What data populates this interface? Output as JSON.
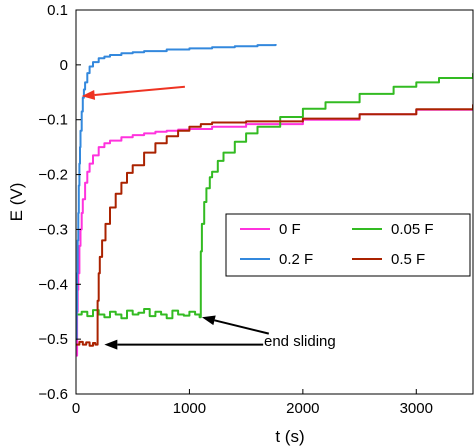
{
  "chart_data": {
    "type": "line",
    "xlabel": "t (s)",
    "ylabel": "E (V)",
    "xlim": [
      0,
      3500
    ],
    "ylim": [
      -0.6,
      0.1
    ],
    "x_ticks": [
      0,
      1000,
      2000,
      3000
    ],
    "x_tick_labels": [
      "0",
      "1000",
      "2000",
      "3000"
    ],
    "y_ticks": [
      0.1,
      0,
      -0.1,
      -0.2,
      -0.3,
      -0.4,
      -0.5,
      -0.6
    ],
    "y_tick_labels": [
      "0.1",
      "0",
      "−0.1",
      "−0.2",
      "−0.3",
      "−0.4",
      "−0.5",
      "−0.6"
    ],
    "grid": false,
    "legend_position": "middle-right",
    "series": [
      {
        "name": "0 F",
        "color": "#ff33dd",
        "x": [
          0,
          5,
          10,
          15,
          20,
          30,
          40,
          50,
          60,
          80,
          100,
          120,
          150,
          200,
          250,
          300,
          400,
          500,
          600,
          700,
          800,
          900,
          1000,
          1200,
          1500,
          2000,
          2500,
          3000,
          3500
        ],
        "y": [
          -0.5,
          -0.53,
          -0.45,
          -0.41,
          -0.38,
          -0.33,
          -0.3,
          -0.27,
          -0.245,
          -0.215,
          -0.195,
          -0.18,
          -0.165,
          -0.15,
          -0.143,
          -0.138,
          -0.132,
          -0.128,
          -0.125,
          -0.122,
          -0.12,
          -0.118,
          -0.117,
          -0.113,
          -0.108,
          -0.1,
          -0.09,
          -0.082,
          -0.074
        ]
      },
      {
        "name": "0.05 F",
        "color": "#33bb22",
        "x": [
          0,
          50,
          100,
          150,
          200,
          250,
          300,
          350,
          400,
          450,
          500,
          550,
          600,
          650,
          700,
          750,
          800,
          850,
          900,
          950,
          1000,
          1050,
          1090,
          1100,
          1110,
          1130,
          1150,
          1180,
          1200,
          1250,
          1300,
          1400,
          1500,
          1600,
          1800,
          2000,
          2200,
          2500,
          2800,
          3000,
          3200,
          3500
        ],
        "y": [
          -0.455,
          -0.45,
          -0.458,
          -0.447,
          -0.455,
          -0.46,
          -0.45,
          -0.455,
          -0.462,
          -0.448,
          -0.455,
          -0.452,
          -0.445,
          -0.458,
          -0.45,
          -0.455,
          -0.462,
          -0.448,
          -0.455,
          -0.457,
          -0.45,
          -0.455,
          -0.46,
          -0.34,
          -0.29,
          -0.25,
          -0.225,
          -0.205,
          -0.195,
          -0.175,
          -0.16,
          -0.14,
          -0.125,
          -0.113,
          -0.095,
          -0.08,
          -0.068,
          -0.053,
          -0.04,
          -0.032,
          -0.024,
          -0.015
        ]
      },
      {
        "name": "0.2 F",
        "color": "#3388dd",
        "x": [
          0,
          5,
          10,
          15,
          20,
          25,
          30,
          35,
          40,
          50,
          60,
          70,
          80,
          100,
          120,
          150,
          200,
          250,
          300,
          400,
          500,
          600,
          800,
          1000,
          1200,
          1400,
          1600,
          1760
        ],
        "y": [
          -0.5,
          -0.45,
          -0.38,
          -0.32,
          -0.27,
          -0.22,
          -0.18,
          -0.15,
          -0.12,
          -0.085,
          -0.06,
          -0.045,
          -0.032,
          -0.015,
          -0.003,
          0.005,
          0.012,
          0.015,
          0.018,
          0.021,
          0.023,
          0.025,
          0.028,
          0.03,
          0.032,
          0.034,
          0.036,
          0.038
        ]
      },
      {
        "name": "0.5 F",
        "color": "#aa2200",
        "x": [
          0,
          30,
          60,
          90,
          120,
          150,
          170,
          185,
          190,
          200,
          210,
          230,
          260,
          300,
          350,
          400,
          450,
          500,
          600,
          700,
          800,
          900,
          1000,
          1100,
          1200,
          1500,
          2000,
          2500,
          3000,
          3500
        ],
        "y": [
          -0.51,
          -0.505,
          -0.51,
          -0.506,
          -0.512,
          -0.507,
          -0.51,
          -0.51,
          -0.43,
          -0.38,
          -0.35,
          -0.32,
          -0.29,
          -0.26,
          -0.235,
          -0.215,
          -0.197,
          -0.183,
          -0.16,
          -0.143,
          -0.13,
          -0.12,
          -0.113,
          -0.108,
          -0.105,
          -0.103,
          -0.098,
          -0.09,
          -0.081,
          -0.072
        ]
      }
    ],
    "annotations": [
      {
        "name": "red-arrow",
        "color": "#ee3322",
        "from": [
          960,
          -0.04
        ],
        "to": [
          50,
          -0.057
        ]
      },
      {
        "name": "end-sliding-arrow-1",
        "color": "#000000",
        "from": [
          1700,
          -0.49
        ],
        "to": [
          1110,
          -0.46
        ]
      },
      {
        "name": "end-sliding-arrow-2",
        "color": "#000000",
        "from": [
          1650,
          -0.51
        ],
        "to": [
          250,
          -0.51
        ]
      }
    ],
    "annotation_text": "end sliding"
  }
}
